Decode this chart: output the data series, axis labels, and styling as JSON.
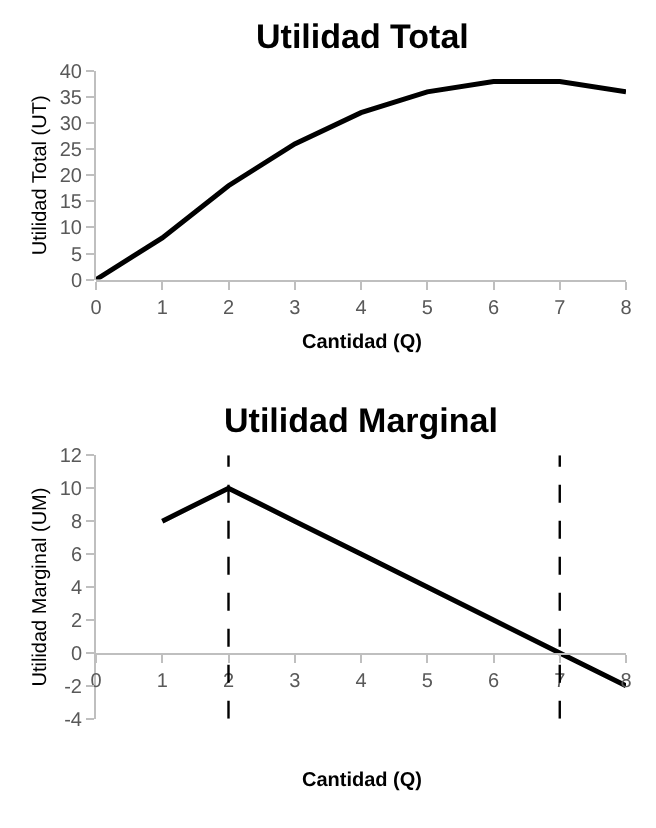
{
  "chart_data": [
    {
      "type": "line",
      "title": "Utilidad Total",
      "xlabel": "Cantidad (Q)",
      "ylabel": "Utilidad Total (UT)",
      "x": [
        0,
        1,
        2,
        3,
        4,
        5,
        6,
        7,
        8
      ],
      "series": [
        {
          "color": "#000000",
          "values": [
            0,
            8,
            18,
            26,
            32,
            36,
            38,
            38,
            36
          ]
        }
      ],
      "xlim": [
        0,
        8
      ],
      "xticks": [
        0,
        1,
        2,
        3,
        4,
        5,
        6,
        7,
        8
      ],
      "ylim": [
        0,
        40
      ],
      "yticks": [
        0,
        5,
        10,
        15,
        20,
        25,
        30,
        35,
        40
      ]
    },
    {
      "type": "line",
      "title": "Utilidad Marginal",
      "xlabel": "Cantidad (Q)",
      "ylabel": "Utilidad Marginal (UM)",
      "x": [
        1,
        2,
        3,
        4,
        5,
        6,
        7,
        8
      ],
      "series": [
        {
          "color": "#000000",
          "values": [
            8,
            10,
            8,
            6,
            4,
            2,
            0,
            -2
          ]
        }
      ],
      "xlim": [
        0,
        8
      ],
      "xticks": [
        0,
        1,
        2,
        3,
        4,
        5,
        6,
        7,
        8
      ],
      "ylim": [
        -4,
        12
      ],
      "yticks": [
        -4,
        -2,
        0,
        2,
        4,
        6,
        8,
        10,
        12
      ],
      "ref_lines": [
        {
          "axis": "x",
          "value": 2,
          "color": "#000000",
          "line_style": "dashed"
        },
        {
          "axis": "x",
          "value": 7,
          "color": "#000000",
          "line_style": "dashed"
        }
      ]
    }
  ]
}
